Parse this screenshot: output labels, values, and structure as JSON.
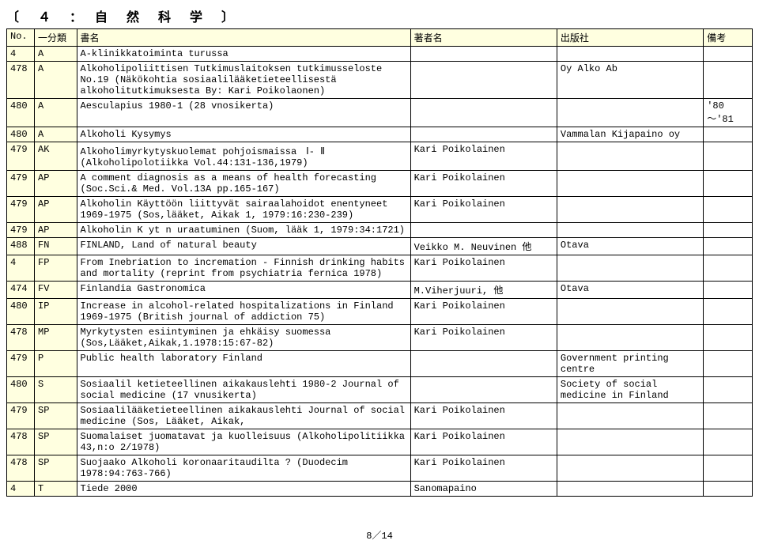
{
  "section_title": "〔　４　：　自　然　科　学　〕",
  "headers": {
    "no": "No.",
    "bunrui": "一分類",
    "shomei": "書名",
    "chosha": "著者名",
    "shuppan": "出版社",
    "biko": "備考"
  },
  "rows": [
    {
      "no": "4",
      "cls": "A",
      "title": "A-klinikkatoiminta turussa",
      "author": "",
      "pub": "",
      "note": ""
    },
    {
      "no": "478",
      "cls": "A",
      "title": "Alkoholipoliittisen Tutkimuslaitoksen tutkimusseloste No.19 (Näkökohtia sosiaalilääketieteellisestä alkoholitutkimuksesta By: Kari Poikolaonen)",
      "author": "",
      "pub": "Oy Alko Ab",
      "note": ""
    },
    {
      "no": "480",
      "cls": "A",
      "title": "Aesculapius 1980-1 (28 vnosikerta)",
      "author": "",
      "pub": "",
      "note": "'80 〜'81"
    },
    {
      "no": "480",
      "cls": "A",
      "title": "Alkoholi Kysymys",
      "author": "",
      "pub": "Vammalan Kijapaino oy",
      "note": ""
    },
    {
      "no": "479",
      "cls": "AK",
      "title": "Alkoholimyrkytyskuolemat pohjoismaissa　Ⅰ- Ⅱ (Alkoholipolotiikka Vol.44:131-136,1979)",
      "author": "Kari Poikolainen",
      "pub": "",
      "note": ""
    },
    {
      "no": "479",
      "cls": "AP",
      "title": "A comment diagnosis as a means of health  forecasting (Soc.Sci.& Med. Vol.13A pp.165-167)",
      "author": "Kari Poikolainen",
      "pub": "",
      "note": ""
    },
    {
      "no": "479",
      "cls": "AP",
      "title": "Alkoholin Käyttöön liittyvät sairaalahoidot enentyneet 1969-1975 (Sos,lääket, Aikak 1, 1979:16:230-239)",
      "author": "Kari Poikolainen",
      "pub": "",
      "note": ""
    },
    {
      "no": "479",
      "cls": "AP",
      "title": "Alkoholin K yt n uraatuminen (Suom, lääk 1, 1979:34:1721)",
      "author": "",
      "pub": "",
      "note": ""
    },
    {
      "no": "488",
      "cls": "FN",
      "title": "FINLAND, Land of natural beauty",
      "author": "Veikko M. Neuvinen 他",
      "pub": "Otava",
      "note": ""
    },
    {
      "no": "4",
      "cls": "FP",
      "title": "From Inebriation to incremation - Finnish drinking habits and mortality (reprint from psychiatria fernica 1978)",
      "author": "Kari Poikolainen",
      "pub": "",
      "note": ""
    },
    {
      "no": "474",
      "cls": "FV",
      "title": "Finlandia Gastronomica",
      "author": "M.Viherjuuri, 他",
      "pub": "Otava",
      "note": ""
    },
    {
      "no": "480",
      "cls": "IP",
      "title": "Increase in alcohol-related hospitalizations in Finland 1969-1975 (British journal of addiction 75)",
      "author": "Kari Poikolainen",
      "pub": "",
      "note": ""
    },
    {
      "no": "478",
      "cls": "MP",
      "title": "Myrkytysten esiintyminen ja ehkäisy suomessa (Sos,Lääket,Aikak,1.1978:15:67-82)",
      "author": "Kari Poikolainen",
      "pub": "",
      "note": ""
    },
    {
      "no": "479",
      "cls": "P",
      "title": "Public health laboratory Finland",
      "author": "",
      "pub": "Government printing centre",
      "note": ""
    },
    {
      "no": "480",
      "cls": "S",
      "title": "Sosiaalil  ketieteellinen aikakauslehti 1980-2 Journal of social medicine (17 vnusikerta)",
      "author": "",
      "pub": "Society of social medicine in Finland",
      "note": ""
    },
    {
      "no": "479",
      "cls": "SP",
      "title": "Sosiaalilääketieteellinen aikakauslehti Journal of social medicine (Sos, Lääket, Aikak,",
      "author": "Kari Poikolainen",
      "pub": "",
      "note": ""
    },
    {
      "no": "478",
      "cls": "SP",
      "title": "Suomalaiset juomatavat ja kuolleisuus (Alkoholipolitiikka 43,n:o 2/1978)",
      "author": "Kari Poikolainen",
      "pub": "",
      "note": ""
    },
    {
      "no": "478",
      "cls": "SP",
      "title": "Suojaako Alkoholi koronaaritaudilta ?  (Duodecim 1978:94:763-766)",
      "author": "Kari Poikolainen",
      "pub": "",
      "note": ""
    },
    {
      "no": "4",
      "cls": "T",
      "title": "Tiede 2000",
      "author": "Sanomapaino",
      "pub": "",
      "note": ""
    }
  ],
  "page_number": "8／14"
}
